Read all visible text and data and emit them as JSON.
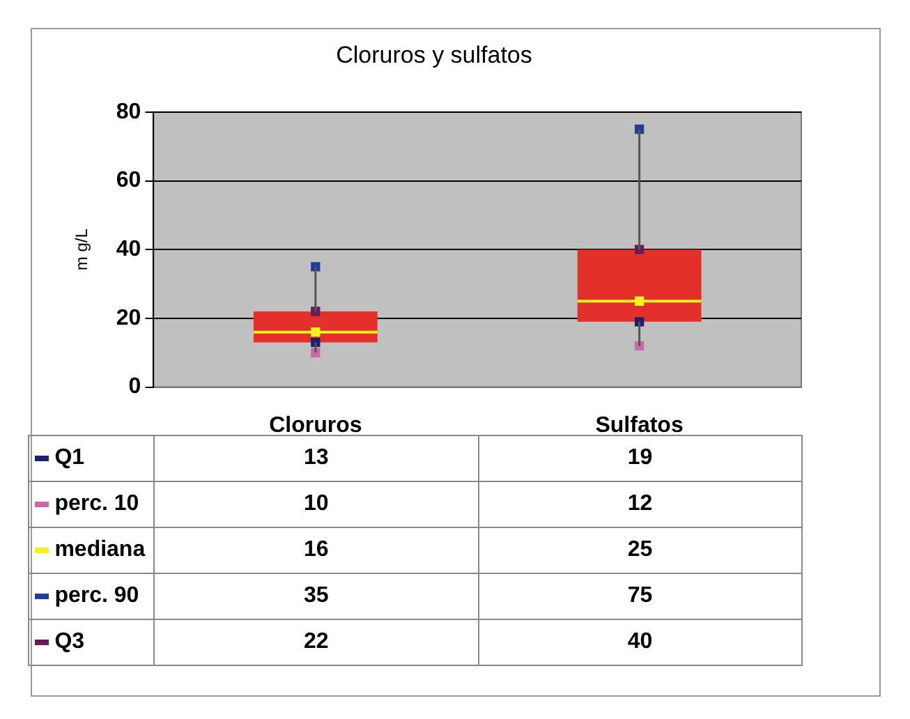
{
  "chart_data": {
    "type": "box",
    "title": "Cloruros y sulfatos",
    "ylabel": "m g/L",
    "categories": [
      "Cloruros",
      "Sulfatos"
    ],
    "color": "#e3302a",
    "ylim": [
      0,
      80
    ],
    "yticks": [
      0,
      20,
      40,
      60,
      80
    ],
    "grid": "y",
    "legend": "bottom",
    "data_labels": true,
    "boxes": [
      {
        "low": 10,
        "q1": 13,
        "median": 16,
        "q3": 22,
        "high": 35
      },
      {
        "low": 12,
        "q1": 19,
        "median": 25,
        "q3": 40,
        "high": 75
      }
    ],
    "series": [
      {
        "name": "Q1",
        "type": "scatter",
        "color": "#1c2070",
        "x": [
          "Cloruros",
          "Sulfatos"
        ],
        "values": [
          13,
          19
        ]
      },
      {
        "name": "perc. 10",
        "type": "scatter",
        "color": "#c86aa8",
        "x": [
          "Cloruros",
          "Sulfatos"
        ],
        "values": [
          10,
          12
        ]
      },
      {
        "name": "mediana",
        "type": "scatter",
        "color": "#f5f020",
        "x": [
          "Cloruros",
          "Sulfatos"
        ],
        "values": [
          16,
          25
        ]
      },
      {
        "name": "perc. 90",
        "type": "scatter",
        "color": "#203c9c",
        "x": [
          "Cloruros",
          "Sulfatos"
        ],
        "values": [
          35,
          75
        ]
      },
      {
        "name": "Q3",
        "type": "scatter",
        "color": "#6a1a58",
        "x": [
          "Cloruros",
          "Sulfatos"
        ],
        "values": [
          22,
          40
        ]
      }
    ]
  }
}
